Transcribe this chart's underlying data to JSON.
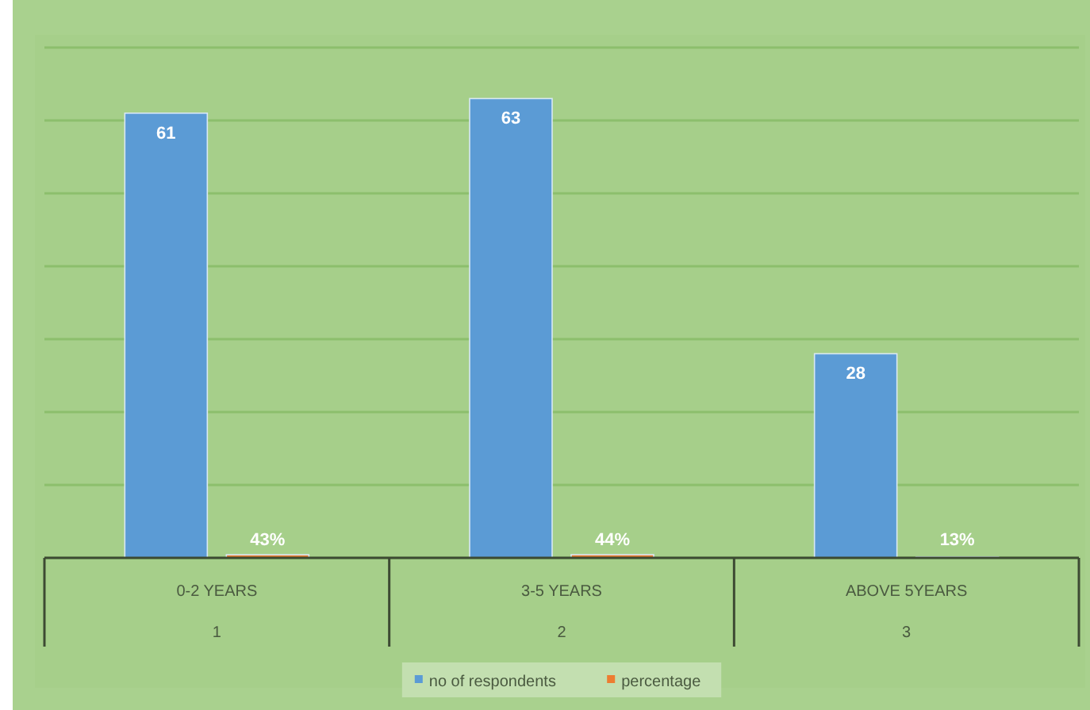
{
  "chart_data": {
    "type": "bar",
    "categories": [
      "0-2 YEARS",
      "3-5 YEARS",
      "ABOVE 5YEARS"
    ],
    "series": [
      {
        "name": "no of respondents",
        "color": "#5b9bd5",
        "values": [
          61,
          63,
          28
        ],
        "value_labels": [
          "61",
          "63",
          "28"
        ]
      },
      {
        "name": "percentage",
        "color": "#ed7d31",
        "values": [
          0.43,
          0.44,
          0.13
        ],
        "value_labels": [
          "43%",
          "44%",
          "13%"
        ]
      }
    ],
    "annotations": [
      "1",
      "2",
      "3"
    ],
    "ylim": [
      0,
      70
    ],
    "yticks": [
      {
        "value": 0,
        "label": null
      },
      {
        "value": 10,
        "label": null
      },
      {
        "value": 20,
        "label": null
      },
      {
        "value": 30,
        "label": null
      },
      {
        "value": 40,
        "label": null
      },
      {
        "value": 50,
        "label": null
      },
      {
        "value": 60,
        "label": null
      },
      {
        "value": 70,
        "label": null
      }
    ],
    "tick_labels": "x",
    "grid": "y",
    "legend": "bottom"
  }
}
